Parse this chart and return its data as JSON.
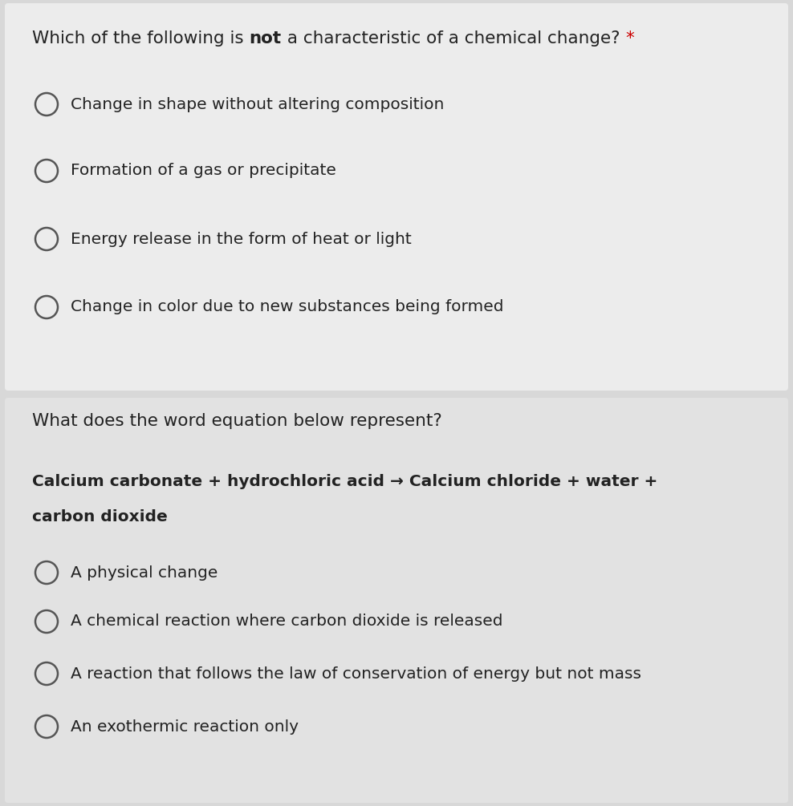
{
  "bg_color": "#d8d8d8",
  "panel1_bg": "#ececec",
  "panel2_bg": "#e2e2e2",
  "text_color": "#222222",
  "circle_edgecolor": "#555555",
  "star_color": "#cc0000",
  "q1_prefix": "Which of the following is ",
  "q1_bold": "not",
  "q1_suffix": " a characteristic of a chemical change? ",
  "q1_star": "*",
  "q1_options": [
    "Change in shape without altering composition",
    "Formation of a gas or precipitate",
    "Energy release in the form of heat or light",
    "Change in color due to new substances being formed"
  ],
  "q2_title": "What does the word equation below represent?",
  "eq_line1": "Calcium carbonate + hydrochloric acid → Calcium chloride + water +",
  "eq_line2": "carbon dioxide",
  "q2_options": [
    "A physical change",
    "A chemical reaction where carbon dioxide is released",
    "A reaction that follows the law of conservation of energy but not mass",
    "An exothermic reaction only"
  ],
  "fig_width": 9.88,
  "fig_height": 10.05,
  "dpi": 100,
  "fontsize_title": 15.5,
  "fontsize_option": 14.5,
  "fontsize_eq": 14.5
}
